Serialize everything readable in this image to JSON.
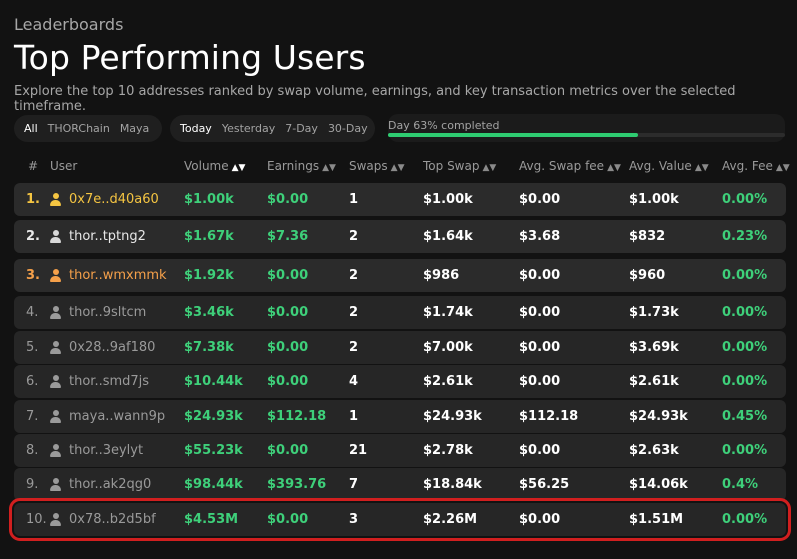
{
  "header": {
    "eyebrow": "Leaderboards",
    "title": "Top Performing Users",
    "subtitle": "Explore the top 10 addresses ranked by swap volume, earnings, and key transaction metrics over the selected timeframe."
  },
  "chain_filter": {
    "options": [
      "All",
      "THORChain",
      "Maya"
    ],
    "selected": "All"
  },
  "time_filter": {
    "options": [
      "Today",
      "Yesterday",
      "7-Day",
      "30-Day"
    ],
    "selected": "Today"
  },
  "progress": {
    "label": "Day 63% completed",
    "fraction": 0.63
  },
  "table": {
    "columns": [
      "#",
      "User",
      "Volume",
      "Earnings",
      "Swaps",
      "Top Swap",
      "Avg. Swap fee",
      "Avg. Value",
      "Avg. Fee"
    ],
    "sorted_column": "Volume",
    "rows": [
      {
        "rank": "1.",
        "user": "0x7e..d40a60",
        "volume": "$1.00k",
        "earnings": "$0.00",
        "swaps": "1",
        "top_swap": "$1.00k",
        "avg_swap_fee": "$0.00",
        "avg_value": "$1.00k",
        "avg_fee": "0.00%"
      },
      {
        "rank": "2.",
        "user": "thor..tptng2",
        "volume": "$1.67k",
        "earnings": "$7.36",
        "swaps": "2",
        "top_swap": "$1.64k",
        "avg_swap_fee": "$3.68",
        "avg_value": "$832",
        "avg_fee": "0.23%"
      },
      {
        "rank": "3.",
        "user": "thor..wmxmmk",
        "volume": "$1.92k",
        "earnings": "$0.00",
        "swaps": "2",
        "top_swap": "$986",
        "avg_swap_fee": "$0.00",
        "avg_value": "$960",
        "avg_fee": "0.00%"
      },
      {
        "rank": "4.",
        "user": "thor..9sltcm",
        "volume": "$3.46k",
        "earnings": "$0.00",
        "swaps": "2",
        "top_swap": "$1.74k",
        "avg_swap_fee": "$0.00",
        "avg_value": "$1.73k",
        "avg_fee": "0.00%"
      },
      {
        "rank": "5.",
        "user": "0x28..9af180",
        "volume": "$7.38k",
        "earnings": "$0.00",
        "swaps": "2",
        "top_swap": "$7.00k",
        "avg_swap_fee": "$0.00",
        "avg_value": "$3.69k",
        "avg_fee": "0.00%"
      },
      {
        "rank": "6.",
        "user": "thor..smd7js",
        "volume": "$10.44k",
        "earnings": "$0.00",
        "swaps": "4",
        "top_swap": "$2.61k",
        "avg_swap_fee": "$0.00",
        "avg_value": "$2.61k",
        "avg_fee": "0.00%"
      },
      {
        "rank": "7.",
        "user": "maya..wann9p",
        "volume": "$24.93k",
        "earnings": "$112.18",
        "swaps": "1",
        "top_swap": "$24.93k",
        "avg_swap_fee": "$112.18",
        "avg_value": "$24.93k",
        "avg_fee": "0.45%"
      },
      {
        "rank": "8.",
        "user": "thor..3eylyt",
        "volume": "$55.23k",
        "earnings": "$0.00",
        "swaps": "21",
        "top_swap": "$2.78k",
        "avg_swap_fee": "$0.00",
        "avg_value": "$2.63k",
        "avg_fee": "0.00%"
      },
      {
        "rank": "9.",
        "user": "thor..ak2qg0",
        "volume": "$98.44k",
        "earnings": "$393.76",
        "swaps": "7",
        "top_swap": "$18.84k",
        "avg_swap_fee": "$56.25",
        "avg_value": "$14.06k",
        "avg_fee": "0.4%"
      },
      {
        "rank": "10.",
        "user": "0x78..b2d5bf",
        "volume": "$4.53M",
        "earnings": "$0.00",
        "swaps": "3",
        "top_swap": "$2.26M",
        "avg_swap_fee": "$0.00",
        "avg_value": "$1.51M",
        "avg_fee": "0.00%"
      }
    ]
  },
  "colors": {
    "background": "#121212",
    "row": "#262626",
    "positive": "#3ed07a",
    "gold": "#f5c542",
    "bronze": "#f5a04a",
    "highlight_outline": "#d11f1f"
  },
  "icons": {
    "user": "user-icon",
    "sort": "sort-icon"
  }
}
